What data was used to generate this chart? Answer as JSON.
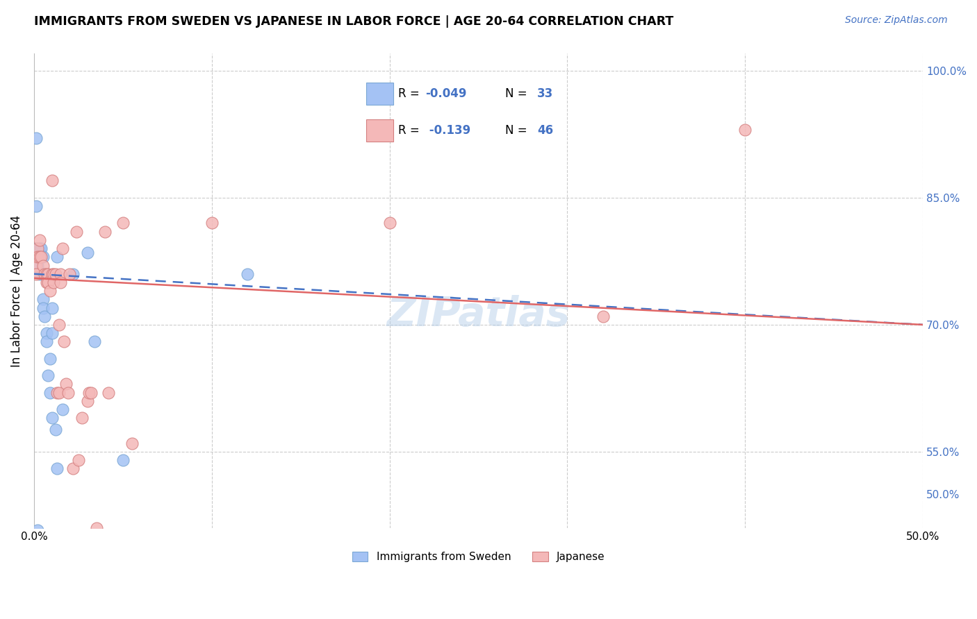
{
  "title": "IMMIGRANTS FROM SWEDEN VS JAPANESE IN LABOR FORCE | AGE 20-64 CORRELATION CHART",
  "source": "Source: ZipAtlas.com",
  "ylabel": "In Labor Force | Age 20-64",
  "xlim": [
    0.0,
    0.5
  ],
  "ylim": [
    0.46,
    1.02
  ],
  "yticks": [
    0.5,
    0.55,
    0.7,
    0.85,
    1.0
  ],
  "ytick_labels": [
    "50.0%",
    "55.0%",
    "70.0%",
    "85.0%",
    "100.0%"
  ],
  "xticks": [
    0.0,
    0.1,
    0.2,
    0.3,
    0.4,
    0.5
  ],
  "xtick_labels": [
    "0.0%",
    "",
    "",
    "",
    "",
    "50.0%"
  ],
  "legend_sweden_R": "-0.049",
  "legend_sweden_N": "33",
  "legend_japanese_R": "-0.139",
  "legend_japanese_N": "46",
  "sweden_color": "#a4c2f4",
  "japanese_color": "#f4b8b8",
  "sweden_line_color": "#4472c4",
  "japanese_line_color": "#e06666",
  "watermark": "ZIPatlas",
  "sweden_line_x0": 0.0,
  "sweden_line_y0": 0.76,
  "sweden_line_x1": 0.5,
  "sweden_line_y1": 0.7,
  "japanese_line_x0": 0.0,
  "japanese_line_y0": 0.755,
  "japanese_line_x1": 0.5,
  "japanese_line_y1": 0.7,
  "sweden_x": [
    0.001,
    0.001,
    0.001,
    0.001,
    0.002,
    0.002,
    0.003,
    0.003,
    0.003,
    0.004,
    0.004,
    0.005,
    0.005,
    0.005,
    0.005,
    0.006,
    0.007,
    0.007,
    0.008,
    0.009,
    0.009,
    0.01,
    0.01,
    0.01,
    0.012,
    0.013,
    0.013,
    0.016,
    0.022,
    0.03,
    0.034,
    0.05,
    0.12
  ],
  "sweden_y": [
    0.92,
    0.84,
    0.79,
    0.78,
    0.457,
    0.77,
    0.79,
    0.78,
    0.76,
    0.79,
    0.78,
    0.78,
    0.76,
    0.73,
    0.72,
    0.71,
    0.69,
    0.68,
    0.64,
    0.62,
    0.66,
    0.59,
    0.72,
    0.69,
    0.576,
    0.78,
    0.53,
    0.6,
    0.76,
    0.785,
    0.68,
    0.54,
    0.76
  ],
  "japanese_x": [
    0.001,
    0.001,
    0.001,
    0.002,
    0.002,
    0.003,
    0.003,
    0.004,
    0.005,
    0.006,
    0.007,
    0.007,
    0.008,
    0.008,
    0.009,
    0.01,
    0.01,
    0.011,
    0.011,
    0.012,
    0.013,
    0.014,
    0.014,
    0.015,
    0.015,
    0.016,
    0.017,
    0.018,
    0.019,
    0.02,
    0.022,
    0.024,
    0.025,
    0.027,
    0.03,
    0.031,
    0.032,
    0.035,
    0.04,
    0.042,
    0.05,
    0.055,
    0.1,
    0.2,
    0.32,
    0.4
  ],
  "japanese_y": [
    0.78,
    0.77,
    0.76,
    0.79,
    0.78,
    0.8,
    0.78,
    0.78,
    0.77,
    0.76,
    0.76,
    0.75,
    0.76,
    0.75,
    0.74,
    0.87,
    0.76,
    0.76,
    0.75,
    0.76,
    0.62,
    0.7,
    0.62,
    0.76,
    0.75,
    0.79,
    0.68,
    0.63,
    0.62,
    0.76,
    0.53,
    0.81,
    0.54,
    0.59,
    0.61,
    0.62,
    0.62,
    0.46,
    0.81,
    0.62,
    0.82,
    0.56,
    0.82,
    0.82,
    0.71,
    0.93
  ]
}
